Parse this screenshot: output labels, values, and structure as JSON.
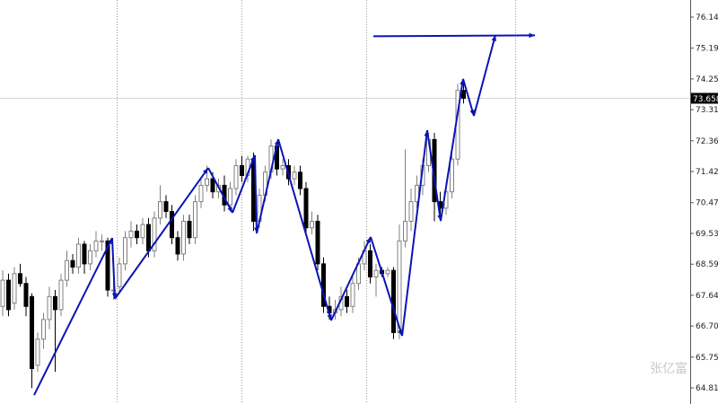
{
  "chart_data": {
    "type": "candlestick",
    "title": "",
    "ylim": [
      64.5,
      76.6
    ],
    "y_ticks": [
      "76.140",
      "75.190",
      "74.250",
      "73.310",
      "72.360",
      "71.420",
      "70.470",
      "69.530",
      "68.590",
      "67.640",
      "66.700",
      "65.750",
      "64.810"
    ],
    "current_price": "73.658",
    "grid": "vertical dotted separators",
    "colors": {
      "bull_body": "#ffffff",
      "bull_outline": "#808080",
      "bear_body": "#000000",
      "zigzag": "#0a14b4",
      "current_line": "#d8d8d8",
      "price_label_bg": "#000000"
    },
    "candles_ohlc": [
      [
        67.3,
        68.4,
        67.0,
        68.1
      ],
      [
        68.1,
        68.3,
        67.0,
        67.2
      ],
      [
        67.4,
        68.5,
        67.2,
        68.3
      ],
      [
        68.3,
        68.6,
        67.9,
        68.0
      ],
      [
        68.0,
        68.2,
        67.0,
        67.3
      ],
      [
        67.6,
        67.7,
        64.8,
        65.4
      ],
      [
        65.5,
        66.5,
        65.3,
        66.3
      ],
      [
        66.3,
        67.1,
        66.0,
        66.9
      ],
      [
        66.9,
        67.9,
        66.6,
        67.6
      ],
      [
        67.6,
        67.8,
        65.3,
        67.2
      ],
      [
        67.2,
        68.3,
        67.0,
        68.1
      ],
      [
        68.1,
        69.0,
        67.9,
        68.7
      ],
      [
        68.7,
        68.9,
        68.3,
        68.5
      ],
      [
        68.5,
        69.4,
        68.3,
        69.2
      ],
      [
        69.2,
        69.3,
        68.3,
        68.6
      ],
      [
        68.6,
        69.2,
        68.4,
        69.0
      ],
      [
        69.0,
        69.6,
        68.8,
        69.3
      ],
      [
        69.3,
        69.5,
        69.0,
        69.3
      ],
      [
        69.3,
        69.4,
        67.6,
        67.8
      ],
      [
        67.8,
        68.1,
        67.5,
        67.8
      ],
      [
        67.9,
        68.8,
        67.7,
        68.6
      ],
      [
        68.6,
        69.6,
        68.4,
        69.4
      ],
      [
        69.4,
        69.9,
        69.1,
        69.6
      ],
      [
        69.6,
        69.8,
        69.2,
        69.4
      ],
      [
        69.4,
        70.0,
        69.2,
        69.8
      ],
      [
        69.8,
        70.0,
        68.8,
        69.0
      ],
      [
        69.0,
        70.2,
        68.8,
        70.0
      ],
      [
        70.0,
        71.0,
        69.8,
        70.5
      ],
      [
        70.5,
        70.7,
        70.0,
        70.2
      ],
      [
        70.2,
        70.4,
        69.2,
        69.4
      ],
      [
        69.4,
        69.6,
        68.7,
        68.9
      ],
      [
        68.9,
        70.1,
        68.7,
        69.9
      ],
      [
        69.9,
        70.1,
        69.2,
        69.4
      ],
      [
        69.4,
        70.7,
        69.2,
        70.5
      ],
      [
        70.5,
        71.2,
        70.3,
        71.0
      ],
      [
        71.0,
        71.6,
        70.8,
        71.2
      ],
      [
        71.2,
        71.4,
        70.6,
        70.8
      ],
      [
        70.8,
        71.2,
        70.6,
        71.0
      ],
      [
        71.0,
        71.3,
        70.2,
        70.4
      ],
      [
        70.4,
        71.1,
        70.2,
        70.9
      ],
      [
        70.9,
        71.8,
        70.7,
        71.6
      ],
      [
        71.6,
        71.9,
        71.1,
        71.3
      ],
      [
        71.3,
        71.9,
        71.1,
        71.8
      ],
      [
        71.8,
        72.0,
        69.6,
        69.9
      ],
      [
        69.9,
        70.9,
        69.7,
        70.7
      ],
      [
        70.7,
        71.6,
        70.5,
        71.4
      ],
      [
        71.4,
        72.4,
        71.2,
        72.2
      ],
      [
        72.2,
        72.3,
        71.3,
        71.5
      ],
      [
        71.5,
        71.8,
        71.3,
        71.6
      ],
      [
        71.6,
        71.8,
        71.0,
        71.2
      ],
      [
        71.2,
        71.6,
        71.0,
        71.4
      ],
      [
        71.4,
        71.6,
        70.7,
        70.9
      ],
      [
        70.9,
        71.1,
        69.5,
        69.7
      ],
      [
        69.7,
        70.2,
        69.5,
        69.9
      ],
      [
        69.9,
        70.1,
        68.4,
        68.6
      ],
      [
        68.6,
        68.8,
        67.1,
        67.3
      ],
      [
        67.3,
        67.6,
        66.9,
        67.1
      ],
      [
        67.1,
        67.5,
        66.9,
        67.2
      ],
      [
        67.2,
        67.9,
        67.0,
        67.6
      ],
      [
        67.6,
        67.8,
        67.1,
        67.3
      ],
      [
        67.3,
        68.2,
        67.1,
        68.0
      ],
      [
        68.0,
        68.8,
        67.8,
        68.6
      ],
      [
        68.6,
        69.3,
        68.4,
        69.0
      ],
      [
        69.0,
        69.2,
        68.0,
        68.2
      ],
      [
        68.2,
        68.6,
        67.6,
        68.4
      ],
      [
        68.4,
        68.5,
        68.2,
        68.3
      ],
      [
        68.3,
        68.5,
        68.2,
        68.4
      ],
      [
        68.4,
        68.5,
        66.3,
        66.5
      ],
      [
        66.5,
        69.8,
        66.3,
        69.3
      ],
      [
        69.3,
        72.1,
        69.1,
        69.9
      ],
      [
        69.9,
        70.9,
        69.6,
        70.5
      ],
      [
        70.5,
        71.3,
        70.3,
        71.0
      ],
      [
        71.0,
        71.8,
        70.7,
        71.6
      ],
      [
        71.6,
        72.6,
        71.4,
        72.4
      ],
      [
        72.4,
        72.6,
        69.9,
        70.5
      ],
      [
        70.5,
        70.8,
        70.1,
        70.3
      ],
      [
        70.3,
        71.1,
        70.1,
        70.8
      ],
      [
        70.8,
        72.0,
        70.6,
        71.8
      ],
      [
        71.8,
        74.1,
        71.6,
        73.9
      ],
      [
        73.9,
        74.1,
        73.5,
        73.658
      ]
    ],
    "zigzag": [
      64.59,
      69.39,
      67.53,
      71.53,
      70.16,
      71.92,
      69.53,
      72.41,
      66.87,
      69.42,
      66.4,
      72.68,
      69.91,
      74.25,
      73.12,
      75.59
    ],
    "target_level": 75.58,
    "watermark": "张亿富"
  }
}
